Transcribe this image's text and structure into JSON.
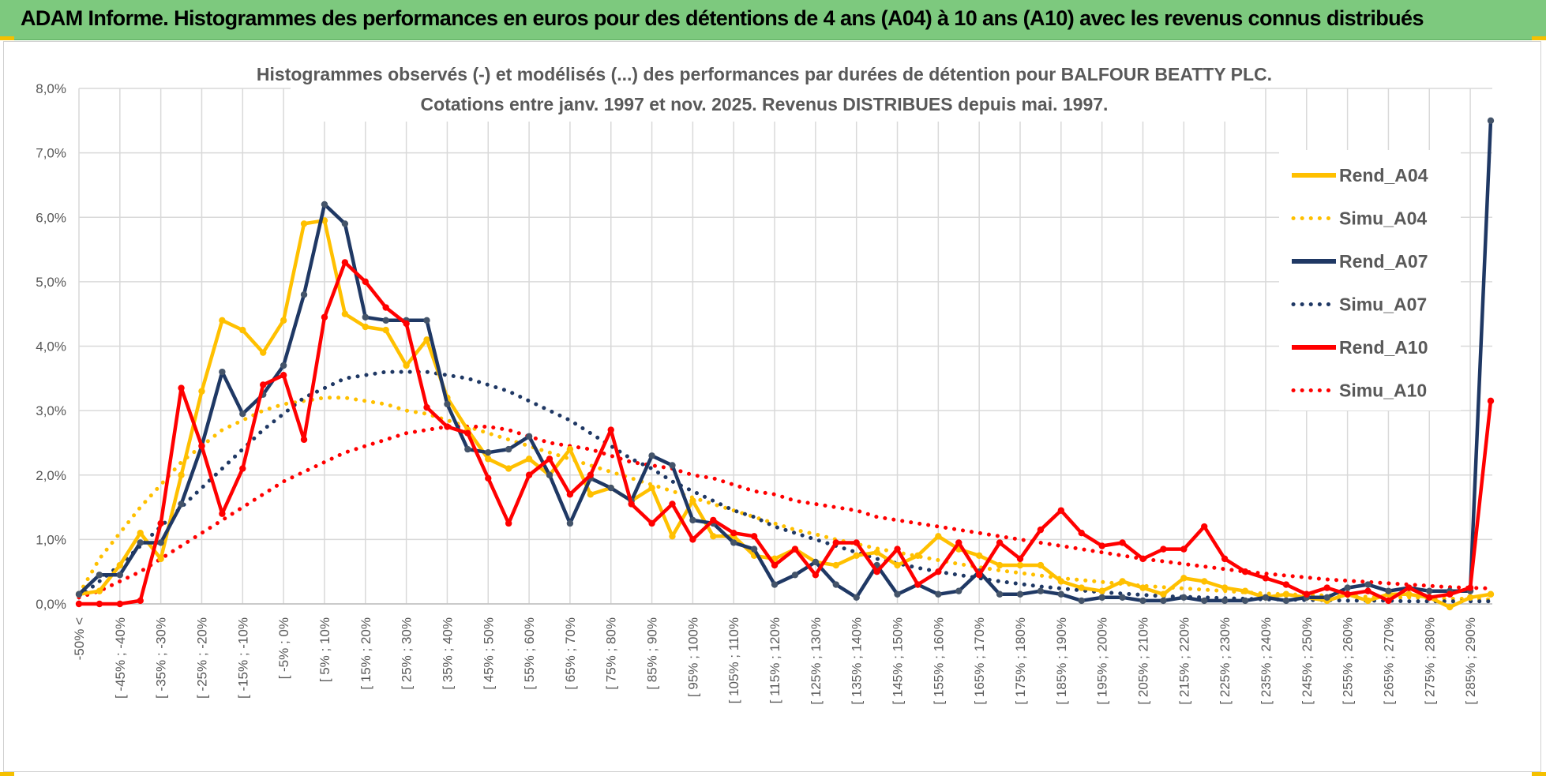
{
  "banner": {
    "title": "ADAM Informe. Histogrammes des performances en euros pour des détentions de 4 ans (A04) à 10 ans (A10) avec les revenus connus distribués"
  },
  "colors": {
    "banner": "#7DC97E",
    "A04": "#FFC000",
    "A07": "#1F3864",
    "A10": "#FF0000",
    "grid": "#D9D9D9",
    "text": "#595959"
  },
  "chart_data": {
    "type": "line",
    "title": [
      "Histogrammes observés (-) et modélisés (...) des performances par durées de détention pour BALFOUR BEATTY PLC.",
      "Cotations entre janv. 1997 et nov. 2025. Revenus DISTRIBUES depuis mai. 1997."
    ],
    "xlabel": "",
    "ylabel": "",
    "ylim": [
      0,
      8
    ],
    "yticks": [
      "0,0%",
      "1,0%",
      "2,0%",
      "3,0%",
      "4,0%",
      "5,0%",
      "6,0%",
      "7,0%",
      "8,0%"
    ],
    "x_tick_labels": [
      "-50% <",
      "[ -45% ; -40%",
      "[ -35% ; -30%",
      "[ -25% ; -20%",
      "[ -15% ; -10%",
      "[ -5% ; 0%",
      "[ 5% ; 10%",
      "[ 15% ; 20%",
      "[ 25% ; 30%",
      "[ 35% ; 40%",
      "[ 45% ; 50%",
      "[ 55% ; 60%",
      "[ 65% ; 70%",
      "[ 75% ; 80%",
      "[ 85% ; 90%",
      "[ 95% ; 100%",
      "[ 105% ; 110%",
      "[ 115% ; 120%",
      "[ 125% ; 130%",
      "[ 135% ; 140%",
      "[ 145% ; 150%",
      "[ 155% ; 160%",
      "[ 165% ; 170%",
      "[ 175% ; 180%",
      "[ 185% ; 190%",
      "[ 195% ; 200%",
      "[ 205% ; 210%",
      "[ 215% ; 220%",
      "[ 225% ; 230%",
      "[ 235% ; 240%",
      "[ 245% ; 250%",
      "[ 255% ; 260%",
      "[ 265% ; 270%",
      "[ 275% ; 280%",
      "[ 285% ; 290%"
    ],
    "n_bins": 70,
    "legend_position": "right",
    "series": [
      {
        "name": "Rend_A04",
        "style": "solid",
        "color": "#FFC000",
        "values": [
          0.15,
          0.2,
          0.6,
          1.1,
          0.7,
          2.0,
          3.3,
          4.4,
          4.25,
          3.9,
          4.4,
          5.9,
          5.95,
          4.5,
          4.3,
          4.25,
          3.7,
          4.1,
          3.2,
          2.7,
          2.25,
          2.1,
          2.25,
          2.0,
          2.4,
          1.7,
          1.8,
          1.6,
          1.8,
          1.05,
          1.6,
          1.05,
          1.05,
          0.75,
          0.7,
          0.85,
          0.65,
          0.6,
          0.75,
          0.8,
          0.6,
          0.75,
          1.05,
          0.85,
          0.75,
          0.6,
          0.6,
          0.6,
          0.35,
          0.25,
          0.2,
          0.35,
          0.25,
          0.15,
          0.4,
          0.35,
          0.25,
          0.2,
          0.1,
          0.15,
          0.1,
          0.05,
          0.15,
          0.05,
          0.15,
          0.15,
          0.1,
          -0.05,
          0.1,
          0.15
        ]
      },
      {
        "name": "Simu_A04",
        "style": "dotted",
        "color": "#FFC000",
        "values": [
          0.15,
          0.7,
          1.1,
          1.5,
          1.85,
          2.2,
          2.45,
          2.7,
          2.85,
          3.0,
          3.1,
          3.15,
          3.2,
          3.2,
          3.15,
          3.1,
          3.0,
          2.95,
          2.85,
          2.75,
          2.65,
          2.55,
          2.45,
          2.35,
          2.25,
          2.15,
          2.05,
          1.95,
          1.85,
          1.75,
          1.65,
          1.55,
          1.45,
          1.35,
          1.25,
          1.15,
          1.08,
          1.0,
          0.93,
          0.86,
          0.8,
          0.74,
          0.68,
          0.62,
          0.57,
          0.52,
          0.48,
          0.44,
          0.4,
          0.37,
          0.34,
          0.31,
          0.28,
          0.26,
          0.24,
          0.22,
          0.2,
          0.18,
          0.16,
          0.15,
          0.14,
          0.13,
          0.12,
          0.11,
          0.1,
          0.1,
          0.09,
          0.08,
          0.08,
          0.07
        ]
      },
      {
        "name": "Rend_A07",
        "style": "solid",
        "color": "#1F3864",
        "values": [
          0.15,
          0.45,
          0.45,
          0.95,
          0.95,
          1.55,
          2.45,
          3.6,
          2.95,
          3.25,
          3.7,
          4.8,
          6.2,
          5.9,
          4.45,
          4.4,
          4.4,
          4.4,
          3.1,
          2.4,
          2.35,
          2.4,
          2.6,
          2.0,
          1.25,
          1.95,
          1.8,
          1.6,
          2.3,
          2.15,
          1.3,
          1.25,
          0.95,
          0.85,
          0.3,
          0.45,
          0.65,
          0.3,
          0.1,
          0.6,
          0.15,
          0.3,
          0.15,
          0.2,
          0.5,
          0.15,
          0.15,
          0.2,
          0.15,
          0.05,
          0.1,
          0.1,
          0.05,
          0.05,
          0.1,
          0.05,
          0.05,
          0.05,
          0.1,
          0.05,
          0.1,
          0.1,
          0.25,
          0.3,
          0.2,
          0.25,
          0.2,
          0.2,
          0.2,
          7.5
        ]
      },
      {
        "name": "Simu_A07",
        "style": "dotted",
        "color": "#1F3864",
        "values": [
          0.1,
          0.35,
          0.6,
          0.9,
          1.2,
          1.5,
          1.8,
          2.1,
          2.4,
          2.7,
          2.95,
          3.2,
          3.35,
          3.5,
          3.55,
          3.6,
          3.6,
          3.6,
          3.55,
          3.5,
          3.4,
          3.3,
          3.15,
          3.0,
          2.85,
          2.65,
          2.45,
          2.25,
          2.1,
          1.9,
          1.75,
          1.6,
          1.45,
          1.35,
          1.2,
          1.1,
          1.0,
          0.9,
          0.8,
          0.7,
          0.63,
          0.56,
          0.5,
          0.45,
          0.4,
          0.35,
          0.31,
          0.27,
          0.24,
          0.21,
          0.18,
          0.16,
          0.14,
          0.12,
          0.11,
          0.1,
          0.09,
          0.08,
          0.07,
          0.07,
          0.06,
          0.06,
          0.05,
          0.05,
          0.05,
          0.04,
          0.04,
          0.04,
          0.04,
          0.04
        ]
      },
      {
        "name": "Rend_A10",
        "style": "solid",
        "color": "#FF0000",
        "values": [
          0.0,
          0.0,
          0.0,
          0.05,
          1.25,
          3.35,
          2.45,
          1.4,
          2.1,
          3.4,
          3.55,
          2.55,
          4.45,
          5.3,
          5.0,
          4.6,
          4.35,
          3.05,
          2.75,
          2.65,
          1.95,
          1.25,
          2.0,
          2.25,
          1.7,
          2.0,
          2.7,
          1.55,
          1.25,
          1.55,
          1.0,
          1.3,
          1.1,
          1.05,
          0.6,
          0.85,
          0.45,
          0.95,
          0.95,
          0.5,
          0.85,
          0.3,
          0.5,
          0.95,
          0.45,
          0.95,
          0.7,
          1.15,
          1.45,
          1.1,
          0.9,
          0.95,
          0.7,
          0.85,
          0.85,
          1.2,
          0.7,
          0.5,
          0.4,
          0.3,
          0.15,
          0.25,
          0.15,
          0.2,
          0.05,
          0.25,
          0.1,
          0.15,
          0.25,
          3.15
        ]
      },
      {
        "name": "Simu_A10",
        "style": "dotted",
        "color": "#FF0000",
        "values": [
          0.1,
          0.2,
          0.35,
          0.5,
          0.7,
          0.9,
          1.1,
          1.3,
          1.5,
          1.7,
          1.9,
          2.05,
          2.2,
          2.35,
          2.45,
          2.55,
          2.65,
          2.7,
          2.75,
          2.75,
          2.75,
          2.7,
          2.6,
          2.5,
          2.45,
          2.4,
          2.3,
          2.2,
          2.15,
          2.1,
          2.0,
          1.95,
          1.85,
          1.75,
          1.7,
          1.6,
          1.55,
          1.5,
          1.45,
          1.35,
          1.3,
          1.25,
          1.2,
          1.15,
          1.1,
          1.05,
          1.0,
          0.95,
          0.9,
          0.85,
          0.8,
          0.75,
          0.7,
          0.66,
          0.62,
          0.58,
          0.54,
          0.5,
          0.47,
          0.44,
          0.41,
          0.38,
          0.36,
          0.34,
          0.32,
          0.3,
          0.28,
          0.26,
          0.25,
          0.24
        ]
      }
    ]
  }
}
